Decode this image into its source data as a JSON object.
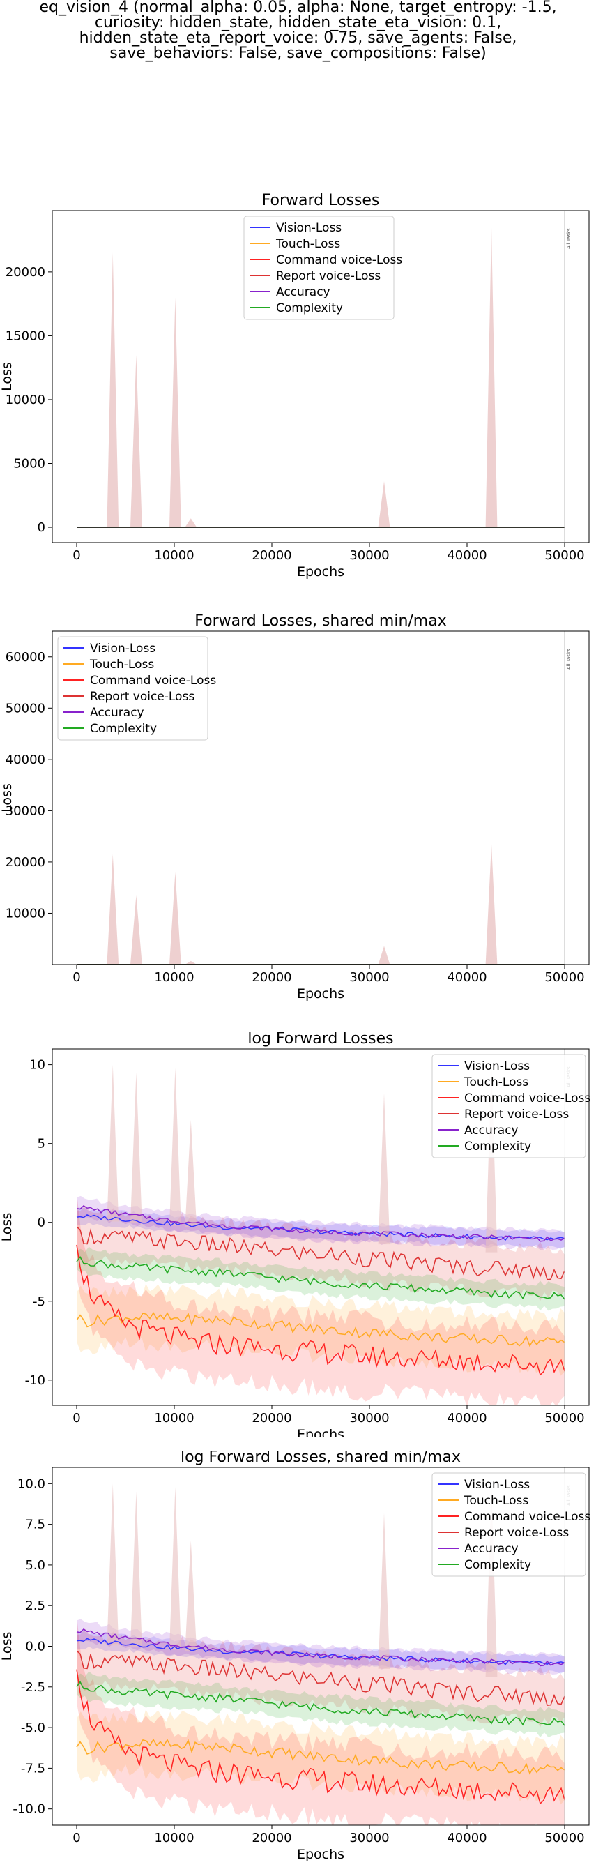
{
  "figure_title_lines": [
    "eq_vision_4 (normal_alpha: 0.05, alpha: None, target_entropy: -1.5,",
    "curiosity: hidden_state, hidden_state_eta_vision: 0.1,",
    "hidden_state_eta_report_voice: 0.75, save_agents: False,",
    "save_behaviors: False, save_compositions: False)"
  ],
  "colors": {
    "vision": "#3333ff",
    "touch": "#ffaa22",
    "command": "#ff2222",
    "report": "#dd3333",
    "accuracy": "#8822cc",
    "complexity": "#22aa22",
    "spike_fill": "#e8c0c0"
  },
  "legend_entries": [
    "Vision-Loss",
    "Touch-Loss",
    "Command voice-Loss",
    "Report voice-Loss",
    "Accuracy",
    "Complexity"
  ],
  "marker_label": "All Tasks",
  "chart_data": [
    {
      "type": "line",
      "title": "Forward Losses",
      "xlabel": "Epochs",
      "ylabel": "Loss",
      "xlim": [
        -2500,
        52500
      ],
      "ylim": [
        -1200,
        24800
      ],
      "xticks": [
        0,
        10000,
        20000,
        30000,
        40000,
        50000
      ],
      "yticks": [
        0,
        5000,
        10000,
        15000,
        20000
      ],
      "legend_position": "upper-center",
      "grid": false,
      "scale": "linear",
      "spikes": [
        {
          "x": 3700,
          "y": 21500
        },
        {
          "x": 6100,
          "y": 13500
        },
        {
          "x": 10100,
          "y": 18000
        },
        {
          "x": 11700,
          "y": 700
        },
        {
          "x": 31500,
          "y": 3600
        },
        {
          "x": 42500,
          "y": 23500
        }
      ],
      "marker_x": 50000
    },
    {
      "type": "line",
      "title": "Forward Losses, shared min/max",
      "xlabel": "Epochs",
      "ylabel": "Loss",
      "xlim": [
        -2500,
        52500
      ],
      "ylim": [
        0,
        65000
      ],
      "xticks": [
        0,
        10000,
        20000,
        30000,
        40000,
        50000
      ],
      "yticks": [
        10000,
        20000,
        30000,
        40000,
        50000,
        60000
      ],
      "legend_position": "upper-left",
      "grid": false,
      "scale": "linear",
      "spikes": [
        {
          "x": 3700,
          "y": 21500
        },
        {
          "x": 6100,
          "y": 13500
        },
        {
          "x": 10100,
          "y": 18000
        },
        {
          "x": 11700,
          "y": 700
        },
        {
          "x": 31500,
          "y": 3600
        },
        {
          "x": 42500,
          "y": 23500
        }
      ],
      "marker_x": 50000
    },
    {
      "type": "line",
      "title": "log Forward Losses",
      "xlabel": "Epochs",
      "ylabel": "Loss",
      "xlim": [
        -2500,
        52500
      ],
      "ylim": [
        -11.6,
        11.0
      ],
      "xticks": [
        0,
        10000,
        20000,
        30000,
        40000,
        50000
      ],
      "yticks": [
        -10,
        -5,
        0,
        5,
        10
      ],
      "legend_position": "upper-right",
      "grid": false,
      "scale": "log-values",
      "spikes": [
        {
          "x": 3700,
          "y": 10.0
        },
        {
          "x": 6100,
          "y": 9.5
        },
        {
          "x": 10100,
          "y": 9.8
        },
        {
          "x": 11700,
          "y": 6.5
        },
        {
          "x": 31500,
          "y": 8.2
        },
        {
          "x": 42500,
          "y": 10.0
        }
      ],
      "marker_x": 50000
    },
    {
      "type": "line",
      "title": "log Forward Losses, shared min/max",
      "xlabel": "Epochs",
      "ylabel": "Loss",
      "xlim": [
        -2500,
        52500
      ],
      "ylim": [
        -11.0,
        11.0
      ],
      "xticks": [
        0,
        10000,
        20000,
        30000,
        40000,
        50000
      ],
      "yticks": [
        -10.0,
        -7.5,
        -5.0,
        -2.5,
        0.0,
        2.5,
        5.0,
        7.5,
        10.0
      ],
      "legend_position": "upper-right",
      "grid": false,
      "scale": "log-values",
      "spikes": [
        {
          "x": 3700,
          "y": 10.0
        },
        {
          "x": 6100,
          "y": 9.5
        },
        {
          "x": 10100,
          "y": 9.8
        },
        {
          "x": 11700,
          "y": 6.5
        },
        {
          "x": 31500,
          "y": 8.2
        },
        {
          "x": 42500,
          "y": 10.0
        }
      ],
      "marker_x": 50000
    }
  ],
  "log_series": [
    {
      "name": "Vision-Loss",
      "key": "vision",
      "x": [
        0,
        5000,
        10000,
        15000,
        20000,
        25000,
        30000,
        35000,
        40000,
        45000,
        50000
      ],
      "y": [
        0.4,
        0.2,
        -0.1,
        -0.3,
        -0.4,
        -0.6,
        -0.7,
        -0.8,
        -0.9,
        -1.0,
        -1.1
      ],
      "band": 0.5,
      "noise": 0.15
    },
    {
      "name": "Touch-Loss",
      "key": "touch",
      "x": [
        0,
        1000,
        2500,
        5000,
        10000,
        15000,
        20000,
        25000,
        30000,
        35000,
        40000,
        45000,
        50000
      ],
      "y": [
        -6.0,
        -6.3,
        -6.2,
        -6.0,
        -6.1,
        -6.2,
        -6.5,
        -6.8,
        -7.0,
        -7.2,
        -7.4,
        -7.5,
        -7.6
      ],
      "band": 1.8,
      "noise": 0.35
    },
    {
      "name": "Command voice-Loss",
      "key": "command",
      "x": [
        0,
        500,
        1500,
        3000,
        5000,
        8000,
        12000,
        20000,
        30000,
        40000,
        50000
      ],
      "y": [
        -0.8,
        -3.0,
        -4.5,
        -5.6,
        -6.4,
        -7.0,
        -7.6,
        -8.0,
        -8.5,
        -8.8,
        -9.1
      ],
      "band": 2.4,
      "noise": 0.7
    },
    {
      "name": "Report voice-Loss",
      "key": "report",
      "x": [
        0,
        5000,
        10000,
        15000,
        20000,
        25000,
        30000,
        35000,
        40000,
        45000,
        50000
      ],
      "y": [
        -0.8,
        -1.0,
        -1.2,
        -1.5,
        -1.8,
        -2.0,
        -2.3,
        -2.6,
        -2.8,
        -3.0,
        -3.2
      ],
      "band": 1.6,
      "noise": 0.55
    },
    {
      "name": "Accuracy",
      "key": "accuracy",
      "x": [
        0,
        5000,
        10000,
        15000,
        20000,
        25000,
        30000,
        35000,
        40000,
        45000,
        50000
      ],
      "y": [
        1.0,
        0.5,
        0.1,
        -0.2,
        -0.4,
        -0.6,
        -0.7,
        -0.8,
        -0.9,
        -1.0,
        -1.1
      ],
      "band": 0.6,
      "noise": 0.15
    },
    {
      "name": "Complexity",
      "key": "complexity",
      "x": [
        0,
        5000,
        10000,
        15000,
        20000,
        25000,
        30000,
        35000,
        40000,
        45000,
        50000
      ],
      "y": [
        -2.4,
        -2.8,
        -3.0,
        -3.2,
        -3.5,
        -3.8,
        -4.0,
        -4.2,
        -4.4,
        -4.6,
        -4.7
      ],
      "band": 0.8,
      "noise": 0.25
    }
  ]
}
